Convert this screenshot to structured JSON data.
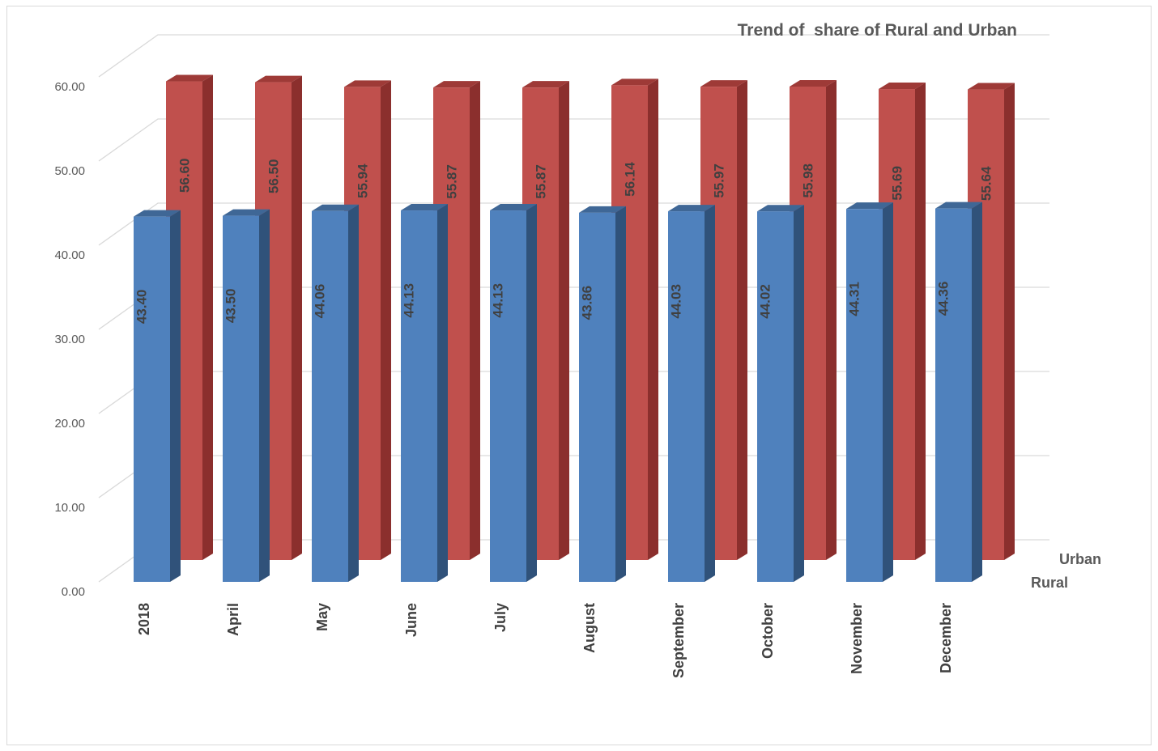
{
  "chart_data": {
    "type": "bar",
    "title": "Trend of  share of Rural and Urban",
    "categories": [
      "2018",
      "April",
      "May",
      "June",
      "July",
      "August",
      "September",
      "October",
      "November",
      "December"
    ],
    "series": [
      {
        "name": "Rural",
        "color": "#4f81bd",
        "values": [
          43.4,
          43.5,
          44.06,
          44.13,
          44.13,
          43.86,
          44.03,
          44.02,
          44.31,
          44.36
        ],
        "labels": [
          "43.40",
          "43.50",
          "44.06",
          "44.13",
          "44.13",
          "43.86",
          "44.03",
          "44.02",
          "44.31",
          "44.36"
        ]
      },
      {
        "name": "Urban",
        "color": "#c0504d",
        "values": [
          56.6,
          56.5,
          55.94,
          55.87,
          55.87,
          56.14,
          55.97,
          55.98,
          55.69,
          55.64
        ],
        "labels": [
          "56.60",
          "56.50",
          "55.94",
          "55.87",
          "55.87",
          "56.14",
          "55.97",
          "55.98",
          "55.69",
          "55.64"
        ]
      }
    ],
    "y_ticks": [
      "0.00",
      "10.00",
      "20.00",
      "30.00",
      "40.00",
      "50.00",
      "60.00"
    ],
    "ylim": [
      0,
      60
    ],
    "grid": true,
    "style": "3D clustered columns, rotated data labels, series names at depth axis"
  }
}
